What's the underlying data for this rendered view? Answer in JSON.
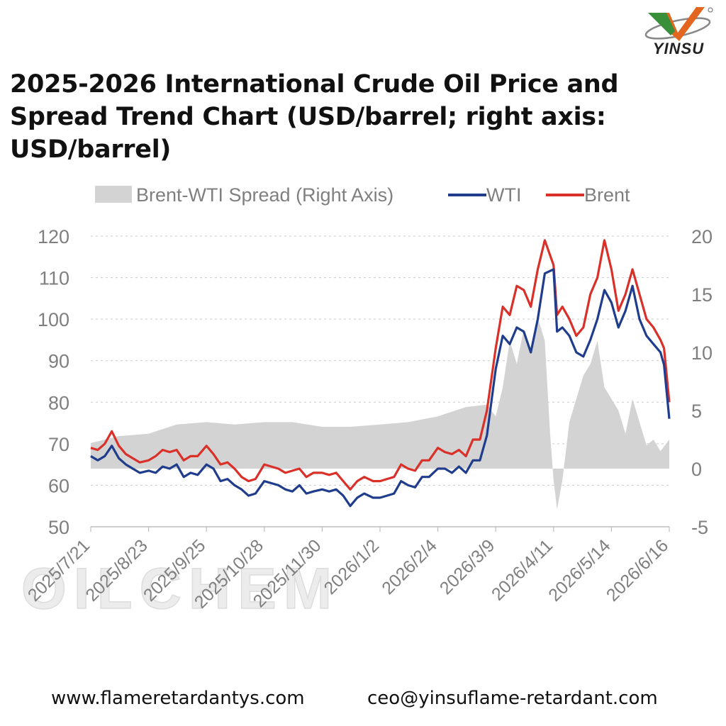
{
  "brand": {
    "name": "YINSU"
  },
  "title": "2025-2026 International Crude Oil Price and Spread Trend Chart (USD/barrel; right axis: USD/barrel)",
  "footer": {
    "website": "www.flameretardantys.com",
    "email": "ceo@yinsuflame-retardant.com"
  },
  "watermark": {
    "text": "OILCHEM"
  },
  "colors": {
    "wti": "#1f3d8c",
    "brent": "#d9302a",
    "spread": "#d3d3d3",
    "grid": "#c9c9c9",
    "axis_text": "#7f7f7f"
  },
  "chart_data": {
    "type": "line",
    "legend": [
      "Brent-WTI Spread (Right Axis)",
      "WTI",
      "Brent"
    ],
    "legend_position": "top",
    "grid": "horizontal dashed",
    "x_tick_labels": [
      "2025/7/21",
      "2025/8/23",
      "2025/9/25",
      "2025/10/28",
      "2025/11/30",
      "2026/1/2",
      "2026/2/4",
      "2026/3/9",
      "2026/4/11",
      "2026/5/14",
      "2026/6/16"
    ],
    "x_start": "2025-07-21",
    "x_end": "2026-06-16",
    "y_left": {
      "range": [
        50,
        120
      ],
      "ticks": [
        50,
        60,
        70,
        80,
        90,
        100,
        110,
        120
      ],
      "unit": "USD/barrel"
    },
    "y_right": {
      "range": [
        -5,
        20
      ],
      "ticks": [
        -5,
        0,
        5,
        10,
        15,
        20
      ],
      "unit": "USD/barrel"
    },
    "series": [
      {
        "name": "WTI",
        "axis": "left",
        "style": "line",
        "points": [
          [
            "2025-07-21",
            67
          ],
          [
            "2025-07-25",
            66
          ],
          [
            "2025-07-29",
            67
          ],
          [
            "2025-08-02",
            69.5
          ],
          [
            "2025-08-06",
            66.5
          ],
          [
            "2025-08-10",
            65
          ],
          [
            "2025-08-14",
            64
          ],
          [
            "2025-08-18",
            63
          ],
          [
            "2025-08-23",
            63.5
          ],
          [
            "2025-08-27",
            63
          ],
          [
            "2025-08-31",
            64.5
          ],
          [
            "2025-09-04",
            64
          ],
          [
            "2025-09-08",
            65
          ],
          [
            "2025-09-12",
            62
          ],
          [
            "2025-09-16",
            63
          ],
          [
            "2025-09-20",
            62.5
          ],
          [
            "2025-09-25",
            65
          ],
          [
            "2025-09-29",
            64
          ],
          [
            "2025-10-03",
            61
          ],
          [
            "2025-10-07",
            61.5
          ],
          [
            "2025-10-11",
            60
          ],
          [
            "2025-10-15",
            59
          ],
          [
            "2025-10-19",
            57.5
          ],
          [
            "2025-10-23",
            58
          ],
          [
            "2025-10-28",
            61
          ],
          [
            "2025-11-01",
            60.5
          ],
          [
            "2025-11-05",
            60
          ],
          [
            "2025-11-09",
            59
          ],
          [
            "2025-11-13",
            58.5
          ],
          [
            "2025-11-17",
            60
          ],
          [
            "2025-11-21",
            58
          ],
          [
            "2025-11-25",
            58.5
          ],
          [
            "2025-11-30",
            59
          ],
          [
            "2025-12-04",
            58.5
          ],
          [
            "2025-12-08",
            59
          ],
          [
            "2025-12-12",
            57.5
          ],
          [
            "2025-12-16",
            55
          ],
          [
            "2025-12-20",
            57
          ],
          [
            "2025-12-24",
            58
          ],
          [
            "2025-12-29",
            57
          ],
          [
            "2026-01-02",
            57
          ],
          [
            "2026-01-06",
            57.5
          ],
          [
            "2026-01-10",
            58
          ],
          [
            "2026-01-14",
            61
          ],
          [
            "2026-01-18",
            60
          ],
          [
            "2026-01-22",
            59.5
          ],
          [
            "2026-01-26",
            62
          ],
          [
            "2026-01-30",
            62
          ],
          [
            "2026-02-04",
            64
          ],
          [
            "2026-02-08",
            64
          ],
          [
            "2026-02-12",
            63
          ],
          [
            "2026-02-16",
            64.5
          ],
          [
            "2026-02-20",
            63
          ],
          [
            "2026-02-24",
            66
          ],
          [
            "2026-02-28",
            66
          ],
          [
            "2026-03-04",
            72
          ],
          [
            "2026-03-09",
            88
          ],
          [
            "2026-03-13",
            96
          ],
          [
            "2026-03-17",
            94
          ],
          [
            "2026-03-21",
            98
          ],
          [
            "2026-03-25",
            97
          ],
          [
            "2026-03-29",
            92
          ],
          [
            "2026-04-02",
            100
          ],
          [
            "2026-04-06",
            111
          ],
          [
            "2026-04-11",
            112
          ],
          [
            "2026-04-13",
            97
          ],
          [
            "2026-04-16",
            98
          ],
          [
            "2026-04-20",
            96
          ],
          [
            "2026-04-24",
            92
          ],
          [
            "2026-04-28",
            91
          ],
          [
            "2026-05-02",
            95
          ],
          [
            "2026-05-06",
            100
          ],
          [
            "2026-05-10",
            107
          ],
          [
            "2026-05-14",
            104
          ],
          [
            "2026-05-18",
            98
          ],
          [
            "2026-05-22",
            102
          ],
          [
            "2026-05-26",
            108
          ],
          [
            "2026-05-30",
            100
          ],
          [
            "2026-06-03",
            96
          ],
          [
            "2026-06-07",
            94
          ],
          [
            "2026-06-11",
            92
          ],
          [
            "2026-06-13",
            89
          ],
          [
            "2026-06-16",
            76
          ]
        ]
      },
      {
        "name": "Brent",
        "axis": "left",
        "style": "line",
        "points": [
          [
            "2025-07-21",
            69
          ],
          [
            "2025-07-25",
            68.5
          ],
          [
            "2025-07-29",
            70
          ],
          [
            "2025-08-02",
            73
          ],
          [
            "2025-08-06",
            69.5
          ],
          [
            "2025-08-10",
            67.5
          ],
          [
            "2025-08-14",
            66.5
          ],
          [
            "2025-08-18",
            65.5
          ],
          [
            "2025-08-23",
            66
          ],
          [
            "2025-08-27",
            67
          ],
          [
            "2025-08-31",
            68.5
          ],
          [
            "2025-09-04",
            68
          ],
          [
            "2025-09-08",
            68.5
          ],
          [
            "2025-09-12",
            66
          ],
          [
            "2025-09-16",
            67
          ],
          [
            "2025-09-20",
            67
          ],
          [
            "2025-09-25",
            69.5
          ],
          [
            "2025-09-29",
            67.5
          ],
          [
            "2025-10-03",
            65
          ],
          [
            "2025-10-07",
            65.5
          ],
          [
            "2025-10-11",
            64
          ],
          [
            "2025-10-15",
            62
          ],
          [
            "2025-10-19",
            61
          ],
          [
            "2025-10-23",
            61.5
          ],
          [
            "2025-10-28",
            65
          ],
          [
            "2025-11-01",
            64.5
          ],
          [
            "2025-11-05",
            64
          ],
          [
            "2025-11-09",
            63
          ],
          [
            "2025-11-13",
            63.5
          ],
          [
            "2025-11-17",
            64
          ],
          [
            "2025-11-21",
            62
          ],
          [
            "2025-11-25",
            63
          ],
          [
            "2025-11-30",
            63
          ],
          [
            "2025-12-04",
            62.5
          ],
          [
            "2025-12-08",
            63
          ],
          [
            "2025-12-12",
            61
          ],
          [
            "2025-12-16",
            59
          ],
          [
            "2025-12-20",
            61
          ],
          [
            "2025-12-24",
            62
          ],
          [
            "2025-12-29",
            61
          ],
          [
            "2026-01-02",
            61
          ],
          [
            "2026-01-06",
            61.5
          ],
          [
            "2026-01-10",
            62
          ],
          [
            "2026-01-14",
            65
          ],
          [
            "2026-01-18",
            64
          ],
          [
            "2026-01-22",
            63.5
          ],
          [
            "2026-01-26",
            66
          ],
          [
            "2026-01-30",
            66
          ],
          [
            "2026-02-04",
            69
          ],
          [
            "2026-02-08",
            68
          ],
          [
            "2026-02-12",
            67.5
          ],
          [
            "2026-02-16",
            68.5
          ],
          [
            "2026-02-20",
            67
          ],
          [
            "2026-02-24",
            71
          ],
          [
            "2026-02-28",
            71
          ],
          [
            "2026-03-04",
            78
          ],
          [
            "2026-03-09",
            93
          ],
          [
            "2026-03-13",
            103
          ],
          [
            "2026-03-17",
            101
          ],
          [
            "2026-03-21",
            108
          ],
          [
            "2026-03-25",
            107
          ],
          [
            "2026-03-29",
            103
          ],
          [
            "2026-04-02",
            112
          ],
          [
            "2026-04-06",
            119
          ],
          [
            "2026-04-11",
            113
          ],
          [
            "2026-04-13",
            101
          ],
          [
            "2026-04-16",
            103
          ],
          [
            "2026-04-20",
            100
          ],
          [
            "2026-04-24",
            96
          ],
          [
            "2026-04-28",
            98
          ],
          [
            "2026-05-02",
            106
          ],
          [
            "2026-05-06",
            110
          ],
          [
            "2026-05-10",
            119
          ],
          [
            "2026-05-14",
            112
          ],
          [
            "2026-05-18",
            102
          ],
          [
            "2026-05-22",
            106
          ],
          [
            "2026-05-26",
            112
          ],
          [
            "2026-05-30",
            106
          ],
          [
            "2026-06-03",
            100
          ],
          [
            "2026-06-07",
            98
          ],
          [
            "2026-06-11",
            95
          ],
          [
            "2026-06-13",
            93
          ],
          [
            "2026-06-16",
            80
          ]
        ]
      },
      {
        "name": "Brent-WTI Spread (Right Axis)",
        "axis": "right",
        "style": "area",
        "points": [
          [
            "2025-07-21",
            2.2
          ],
          [
            "2025-08-06",
            2.8
          ],
          [
            "2025-08-23",
            3
          ],
          [
            "2025-09-08",
            3.8
          ],
          [
            "2025-09-25",
            4
          ],
          [
            "2025-10-11",
            3.8
          ],
          [
            "2025-10-28",
            4
          ],
          [
            "2025-11-13",
            4
          ],
          [
            "2025-11-30",
            3.6
          ],
          [
            "2025-12-16",
            3.6
          ],
          [
            "2026-01-02",
            3.8
          ],
          [
            "2026-01-18",
            4
          ],
          [
            "2026-02-04",
            4.5
          ],
          [
            "2026-02-20",
            5.3
          ],
          [
            "2026-03-04",
            5.5
          ],
          [
            "2026-03-09",
            4.5
          ],
          [
            "2026-03-13",
            7
          ],
          [
            "2026-03-17",
            11
          ],
          [
            "2026-03-21",
            9
          ],
          [
            "2026-03-25",
            12
          ],
          [
            "2026-03-29",
            10
          ],
          [
            "2026-04-02",
            13
          ],
          [
            "2026-04-06",
            11
          ],
          [
            "2026-04-09",
            3
          ],
          [
            "2026-04-11",
            -1
          ],
          [
            "2026-04-13",
            -3.5
          ],
          [
            "2026-04-16",
            -1
          ],
          [
            "2026-04-20",
            4
          ],
          [
            "2026-04-24",
            6
          ],
          [
            "2026-04-28",
            8
          ],
          [
            "2026-05-02",
            9
          ],
          [
            "2026-05-06",
            11
          ],
          [
            "2026-05-10",
            7
          ],
          [
            "2026-05-14",
            6
          ],
          [
            "2026-05-18",
            5
          ],
          [
            "2026-05-22",
            3
          ],
          [
            "2026-05-26",
            6
          ],
          [
            "2026-05-30",
            4
          ],
          [
            "2026-06-03",
            2
          ],
          [
            "2026-06-07",
            2.5
          ],
          [
            "2026-06-11",
            1.5
          ],
          [
            "2026-06-16",
            2.5
          ]
        ]
      }
    ]
  }
}
